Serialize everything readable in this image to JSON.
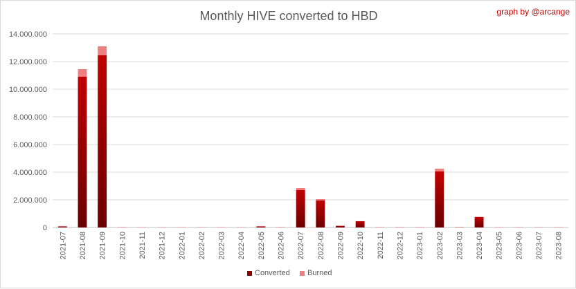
{
  "chart_data": {
    "type": "bar",
    "stacked": true,
    "title": "Monthly HIVE converted to HBD",
    "credit": "graph by @arcange",
    "xlabel": "",
    "ylabel": "",
    "ylim": [
      0,
      14000000
    ],
    "yticks": [
      0,
      2000000,
      4000000,
      6000000,
      8000000,
      10000000,
      12000000,
      14000000
    ],
    "ytick_labels": [
      "0",
      "2.000.000",
      "4.000.000",
      "6.000.000",
      "8.000.000",
      "10.000.000",
      "12.000.000",
      "14.000.000"
    ],
    "grid": true,
    "legend_position": "bottom",
    "categories": [
      "2021-07",
      "2021-08",
      "2021-09",
      "2021-10",
      "2021-11",
      "2021-12",
      "2022-01",
      "2022-02",
      "2022-03",
      "2022-04",
      "2022-05",
      "2022-06",
      "2022-07",
      "2022-08",
      "2022-09",
      "2022-10",
      "2022-11",
      "2022-12",
      "2023-01",
      "2023-02",
      "2023-03",
      "2023-04",
      "2023-05",
      "2023-06",
      "2023-07",
      "2023-08"
    ],
    "series": [
      {
        "name": "Converted",
        "color": "#8b0000",
        "values": [
          80000,
          10900000,
          12450000,
          15000,
          10000,
          10000,
          10000,
          10000,
          10000,
          10000,
          80000,
          15000,
          2700000,
          1950000,
          120000,
          450000,
          15000,
          15000,
          15000,
          4050000,
          20000,
          750000,
          10000,
          10000,
          10000,
          10000
        ]
      },
      {
        "name": "Burned",
        "color": "#f08080",
        "values": [
          5000,
          550000,
          650000,
          10000,
          10000,
          10000,
          10000,
          10000,
          10000,
          10000,
          5000,
          10000,
          150000,
          100000,
          5000,
          5000,
          10000,
          10000,
          10000,
          200000,
          5000,
          20000,
          5000,
          5000,
          5000,
          5000
        ]
      }
    ]
  }
}
